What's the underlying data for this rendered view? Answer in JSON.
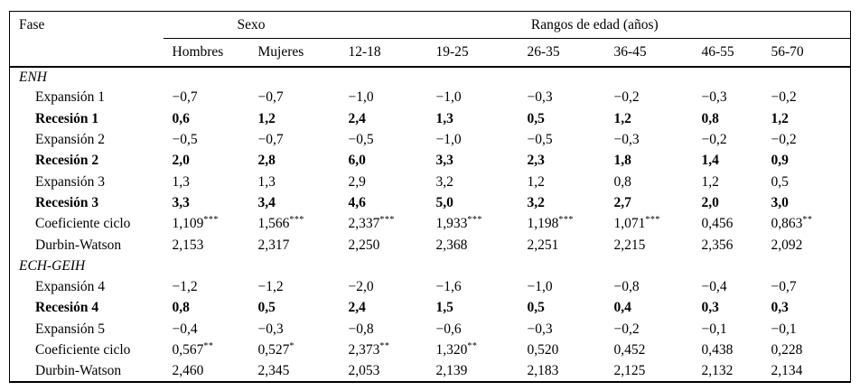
{
  "table": {
    "corner_header": "Fase",
    "group_headers": [
      {
        "label": "Sexo"
      },
      {
        "label": "Rangos de edad (años)"
      }
    ],
    "sub_headers": [
      "Hombres",
      "Mujeres",
      "12-18",
      "19-25",
      "26-35",
      "36-45",
      "46-55",
      "56-70"
    ],
    "sections": [
      {
        "name": "ENH",
        "rows": [
          {
            "label": "Expansión 1",
            "bold": false,
            "values": [
              "−0,7",
              "−0,7",
              "−1,0",
              "−1,0",
              "−0,3",
              "−0,2",
              "−0,3",
              "−0,2"
            ]
          },
          {
            "label": "Recesión 1",
            "bold": true,
            "values": [
              "0,6",
              "1,2",
              "2,4",
              "1,3",
              "0,5",
              "1,2",
              "0,8",
              "1,2"
            ]
          },
          {
            "label": "Expansión 2",
            "bold": false,
            "values": [
              "−0,5",
              "−0,7",
              "−0,5",
              "−1,0",
              "−0,5",
              "−0,3",
              "−0,2",
              "−0,2"
            ]
          },
          {
            "label": "Recesión 2",
            "bold": true,
            "values": [
              "2,0",
              "2,8",
              "6,0",
              "3,3",
              "2,3",
              "1,8",
              "1,4",
              "0,9"
            ]
          },
          {
            "label": "Expansión 3",
            "bold": false,
            "values": [
              "1,3",
              "1,3",
              "2,9",
              "3,2",
              "1,2",
              "0,8",
              "1,2",
              "0,5"
            ]
          },
          {
            "label": "Recesión 3",
            "bold": true,
            "values": [
              "3,3",
              "3,4",
              "4,6",
              "5,0",
              "3,2",
              "2,7",
              "2,0",
              "3,0"
            ]
          },
          {
            "label": "Coeficiente ciclo",
            "bold": false,
            "values": [
              "1,109***",
              "1,566***",
              "2,337***",
              "1,933***",
              "1,198***",
              "1,071***",
              "0,456",
              "0,863**"
            ]
          },
          {
            "label": "Durbin-Watson",
            "bold": false,
            "values": [
              "2,153",
              "2,317",
              "2,250",
              "2,368",
              "2,251",
              "2,215",
              "2,356",
              "2,092"
            ]
          }
        ]
      },
      {
        "name": "ECH-GEIH",
        "rows": [
          {
            "label": "Expansión 4",
            "bold": false,
            "values": [
              "−1,2",
              "−1,2",
              "−2,0",
              "−1,6",
              "−1,0",
              "−0,8",
              "−0,4",
              "−0,7"
            ]
          },
          {
            "label": "Recesión 4",
            "bold": true,
            "values": [
              "0,8",
              "0,5",
              "2,4",
              "1,5",
              "0,5",
              "0,4",
              "0,3",
              "0,3"
            ]
          },
          {
            "label": "Expansión 5",
            "bold": false,
            "values": [
              "−0,4",
              "−0,3",
              "−0,8",
              "−0,6",
              "−0,3",
              "−0,2",
              "−0,1",
              "−0,1"
            ]
          },
          {
            "label": "Coeficiente ciclo",
            "bold": false,
            "values": [
              "0,567**",
              "0,527*",
              "2,373**",
              "1,320**",
              "0,520",
              "0,452",
              "0,438",
              "0,228"
            ]
          },
          {
            "label": "Durbin-Watson",
            "bold": false,
            "values": [
              "2,460",
              "2,345",
              "2,053",
              "2,139",
              "2,183",
              "2,125",
              "2,132",
              "2,134"
            ]
          }
        ]
      }
    ]
  }
}
